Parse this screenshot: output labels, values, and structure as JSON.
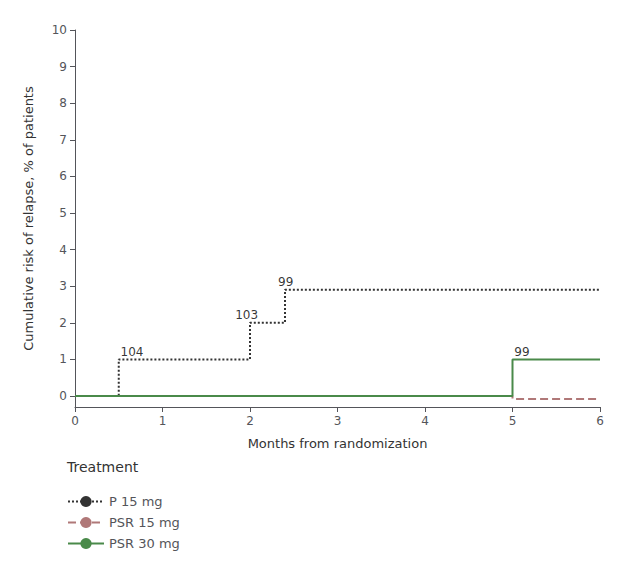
{
  "chart_data": {
    "type": "line",
    "xlabel": "Months from randomization",
    "ylabel": "Cumulative risk of relapse, % of patients",
    "xlim": [
      0,
      6
    ],
    "ylim": [
      -0.3,
      10
    ],
    "xticks": [
      0,
      1,
      2,
      3,
      4,
      5,
      6
    ],
    "yticks": [
      0,
      1,
      2,
      3,
      4,
      5,
      6,
      7,
      8,
      9,
      10
    ],
    "grid": false,
    "legend_title": "Treatment",
    "series": [
      {
        "name": "P 15 mg",
        "color": "#333333",
        "line_style": "dotted",
        "x": [
          0,
          0.5,
          0.5,
          2.0,
          2.0,
          2.4,
          2.4,
          6.0
        ],
        "values": [
          0,
          0,
          1.0,
          1.0,
          2.0,
          2.0,
          2.9,
          2.9
        ]
      },
      {
        "name": "PSR 15 mg",
        "color": "#b07878",
        "line_style": "dashed",
        "x": [
          0,
          5.0,
          5.0,
          6.0
        ],
        "values": [
          0,
          0,
          -0.08,
          -0.08
        ]
      },
      {
        "name": "PSR 30 mg",
        "color": "#4a8a4a",
        "line_style": "solid",
        "x": [
          0,
          5.0,
          5.0,
          6.0
        ],
        "values": [
          0,
          0,
          1.0,
          1.0
        ]
      }
    ],
    "annotations": [
      {
        "text": "104",
        "x": 0.52,
        "y": 1.05
      },
      {
        "text": "103",
        "x": 1.83,
        "y": 2.05
      },
      {
        "text": "99",
        "x": 2.32,
        "y": 2.95
      },
      {
        "text": "99",
        "x": 5.02,
        "y": 1.05
      }
    ]
  }
}
